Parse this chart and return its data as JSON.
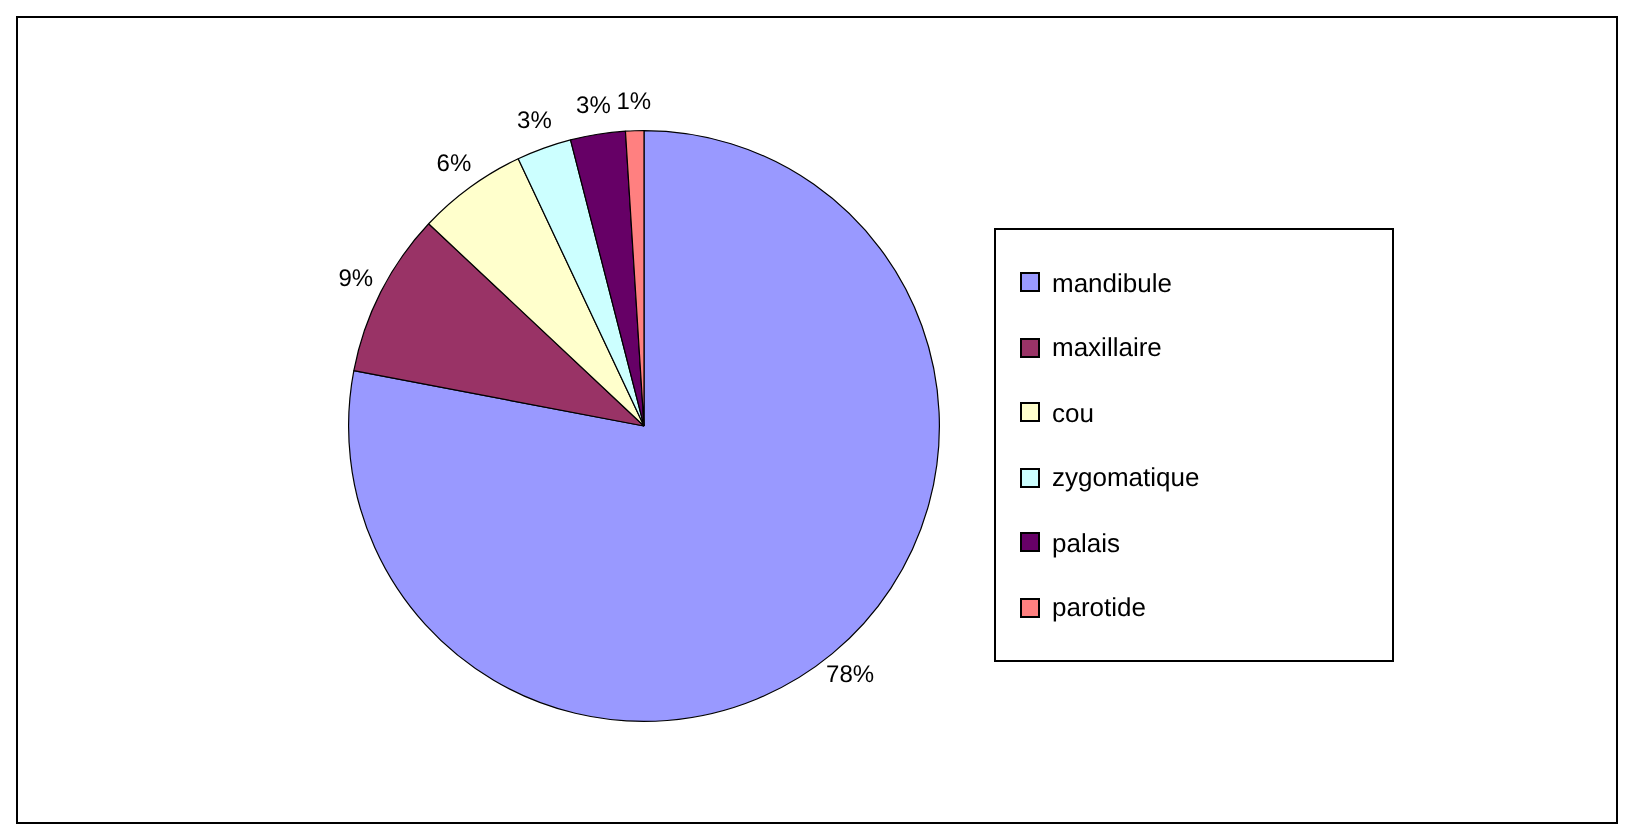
{
  "chart_data": {
    "type": "pie",
    "categories": [
      "mandibule",
      "maxillaire",
      "cou",
      "zygomatique",
      "palais",
      "parotide"
    ],
    "values": [
      78,
      9,
      6,
      3,
      3,
      1
    ],
    "colors": [
      "#9999ff",
      "#993366",
      "#ffffcc",
      "#ccffff",
      "#660066",
      "#ff8080"
    ],
    "value_labels": [
      "78%",
      "9%",
      "6%",
      "3%",
      "3%",
      "1%"
    ],
    "legend": "right"
  }
}
